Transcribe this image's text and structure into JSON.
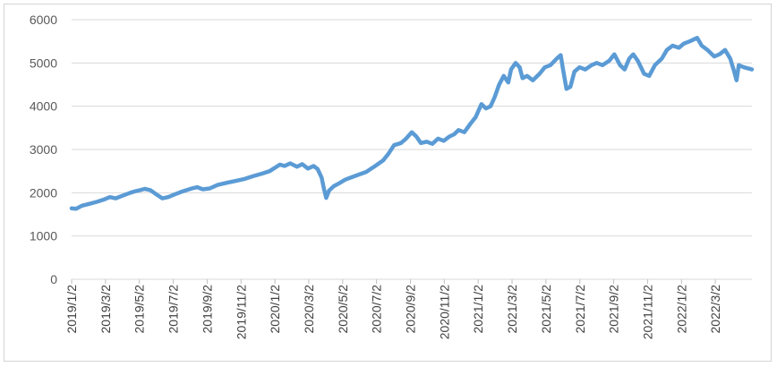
{
  "chart_data": {
    "type": "line",
    "title": "",
    "xlabel": "",
    "ylabel": "",
    "ylim": [
      0,
      6000
    ],
    "y_ticks": [
      0,
      1000,
      2000,
      3000,
      4000,
      5000,
      6000
    ],
    "grid": true,
    "legend": "none",
    "x_tick_labels": [
      "2019/1/2",
      "2019/3/2",
      "2019/5/2",
      "2019/7/2",
      "2019/9/2",
      "2019/11/2",
      "2020/1/2",
      "2020/3/2",
      "2020/5/2",
      "2020/7/2",
      "2020/9/2",
      "2020/11/2",
      "2021/1/2",
      "2021/3/2",
      "2021/5/2",
      "2021/7/2",
      "2021/9/2",
      "2021/11/2",
      "2022/1/2",
      "2022/3/2"
    ],
    "x_range": [
      "2019-01-02",
      "2022-04-08"
    ],
    "series": [
      {
        "color": "#5b9bd5",
        "points": [
          [
            "2019-01-02",
            1640
          ],
          [
            "2019-01-10",
            1630
          ],
          [
            "2019-01-20",
            1700
          ],
          [
            "2019-02-01",
            1740
          ],
          [
            "2019-02-15",
            1790
          ],
          [
            "2019-03-01",
            1850
          ],
          [
            "2019-03-10",
            1900
          ],
          [
            "2019-03-20",
            1870
          ],
          [
            "2019-04-01",
            1930
          ],
          [
            "2019-04-15",
            2000
          ],
          [
            "2019-04-25",
            2040
          ],
          [
            "2019-05-02",
            2060
          ],
          [
            "2019-05-10",
            2090
          ],
          [
            "2019-05-20",
            2060
          ],
          [
            "2019-06-01",
            1950
          ],
          [
            "2019-06-10",
            1870
          ],
          [
            "2019-06-20",
            1900
          ],
          [
            "2019-07-01",
            1960
          ],
          [
            "2019-07-15",
            2030
          ],
          [
            "2019-08-01",
            2100
          ],
          [
            "2019-08-10",
            2130
          ],
          [
            "2019-08-20",
            2080
          ],
          [
            "2019-09-01",
            2100
          ],
          [
            "2019-09-15",
            2180
          ],
          [
            "2019-10-01",
            2230
          ],
          [
            "2019-10-15",
            2270
          ],
          [
            "2019-11-01",
            2320
          ],
          [
            "2019-11-15",
            2380
          ],
          [
            "2019-12-01",
            2440
          ],
          [
            "2019-12-15",
            2500
          ],
          [
            "2020-01-02",
            2650
          ],
          [
            "2020-01-10",
            2620
          ],
          [
            "2020-01-20",
            2680
          ],
          [
            "2020-02-01",
            2600
          ],
          [
            "2020-02-10",
            2660
          ],
          [
            "2020-02-20",
            2560
          ],
          [
            "2020-03-01",
            2620
          ],
          [
            "2020-03-08",
            2550
          ],
          [
            "2020-03-15",
            2350
          ],
          [
            "2020-03-19",
            2100
          ],
          [
            "2020-03-23",
            1880
          ],
          [
            "2020-03-28",
            2050
          ],
          [
            "2020-04-05",
            2150
          ],
          [
            "2020-04-15",
            2220
          ],
          [
            "2020-04-25",
            2300
          ],
          [
            "2020-05-05",
            2350
          ],
          [
            "2020-05-15",
            2400
          ],
          [
            "2020-06-01",
            2480
          ],
          [
            "2020-06-15",
            2600
          ],
          [
            "2020-07-01",
            2750
          ],
          [
            "2020-07-10",
            2900
          ],
          [
            "2020-07-20",
            3100
          ],
          [
            "2020-08-01",
            3150
          ],
          [
            "2020-08-10",
            3250
          ],
          [
            "2020-08-20",
            3400
          ],
          [
            "2020-08-28",
            3300
          ],
          [
            "2020-09-05",
            3150
          ],
          [
            "2020-09-15",
            3180
          ],
          [
            "2020-09-25",
            3130
          ],
          [
            "2020-10-05",
            3250
          ],
          [
            "2020-10-15",
            3200
          ],
          [
            "2020-10-25",
            3300
          ],
          [
            "2020-11-02",
            3350
          ],
          [
            "2020-11-10",
            3450
          ],
          [
            "2020-11-20",
            3400
          ],
          [
            "2020-12-01",
            3600
          ],
          [
            "2020-12-10",
            3750
          ],
          [
            "2020-12-20",
            4050
          ],
          [
            "2020-12-28",
            3950
          ],
          [
            "2021-01-05",
            4000
          ],
          [
            "2021-01-12",
            4200
          ],
          [
            "2021-01-20",
            4500
          ],
          [
            "2021-01-28",
            4700
          ],
          [
            "2021-02-05",
            4550
          ],
          [
            "2021-02-10",
            4850
          ],
          [
            "2021-02-18",
            5000
          ],
          [
            "2021-02-25",
            4900
          ],
          [
            "2021-03-02",
            4650
          ],
          [
            "2021-03-10",
            4700
          ],
          [
            "2021-03-20",
            4600
          ],
          [
            "2021-04-01",
            4750
          ],
          [
            "2021-04-10",
            4900
          ],
          [
            "2021-04-20",
            4950
          ],
          [
            "2021-05-01",
            5100
          ],
          [
            "2021-05-08",
            5180
          ],
          [
            "2021-05-12",
            4850
          ],
          [
            "2021-05-18",
            4400
          ],
          [
            "2021-05-25",
            4450
          ],
          [
            "2021-06-01",
            4800
          ],
          [
            "2021-06-10",
            4900
          ],
          [
            "2021-06-20",
            4850
          ],
          [
            "2021-07-01",
            4950
          ],
          [
            "2021-07-10",
            5000
          ],
          [
            "2021-07-20",
            4950
          ],
          [
            "2021-08-01",
            5050
          ],
          [
            "2021-08-10",
            5200
          ],
          [
            "2021-08-20",
            4950
          ],
          [
            "2021-08-28",
            4850
          ],
          [
            "2021-09-05",
            5100
          ],
          [
            "2021-09-12",
            5200
          ],
          [
            "2021-09-20",
            5050
          ],
          [
            "2021-10-01",
            4750
          ],
          [
            "2021-10-10",
            4700
          ],
          [
            "2021-10-20",
            4950
          ],
          [
            "2021-11-01",
            5100
          ],
          [
            "2021-11-10",
            5300
          ],
          [
            "2021-11-20",
            5400
          ],
          [
            "2021-12-01",
            5350
          ],
          [
            "2021-12-10",
            5450
          ],
          [
            "2021-12-20",
            5500
          ],
          [
            "2022-01-02",
            5580
          ],
          [
            "2022-01-10",
            5400
          ],
          [
            "2022-01-20",
            5300
          ],
          [
            "2022-02-01",
            5150
          ],
          [
            "2022-02-10",
            5200
          ],
          [
            "2022-02-20",
            5300
          ],
          [
            "2022-03-01",
            5100
          ],
          [
            "2022-03-08",
            4800
          ],
          [
            "2022-03-12",
            4600
          ],
          [
            "2022-03-16",
            4950
          ],
          [
            "2022-03-25",
            4900
          ],
          [
            "2022-04-08",
            4850
          ]
        ]
      }
    ]
  }
}
